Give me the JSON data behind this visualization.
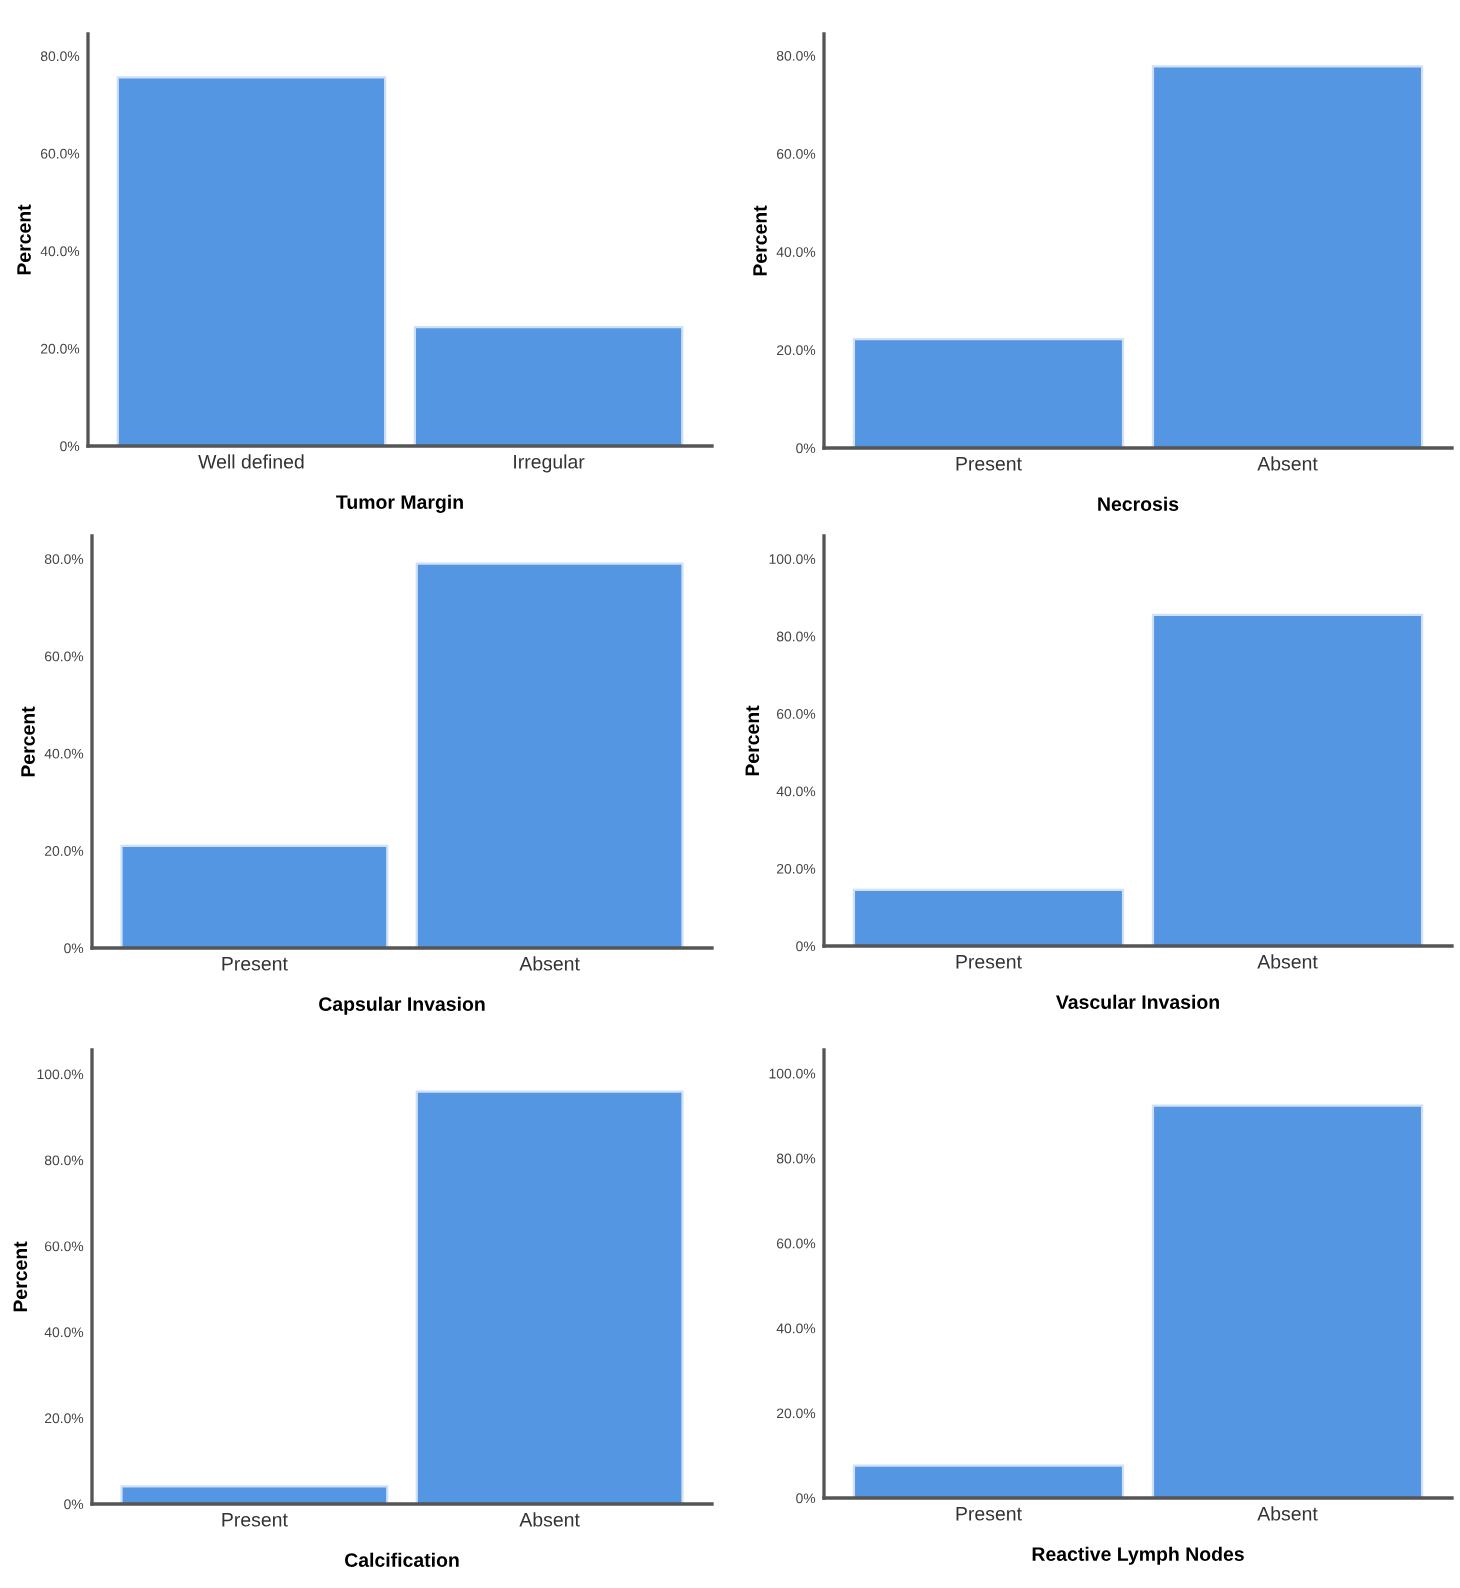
{
  "chart_data": [
    {
      "type": "bar",
      "categories": [
        "Well defined",
        "Irregular"
      ],
      "values": [
        75.6,
        24.4
      ],
      "color": "#5596e3",
      "xlabel": "Tumor Margin",
      "ylabel": "Percent",
      "ylim": [
        0,
        84.5
      ],
      "yticks": [
        {
          "value": 0,
          "label": "0%"
        },
        {
          "value": 20,
          "label": "20.0%"
        },
        {
          "value": 40,
          "label": "40.0%"
        },
        {
          "value": 60,
          "label": "60.0%"
        },
        {
          "value": 80,
          "label": "80.0%"
        }
      ],
      "grid": false
    },
    {
      "type": "bar",
      "categories": [
        "Present",
        "Absent"
      ],
      "values": [
        22.2,
        77.8
      ],
      "color": "#5596e3",
      "xlabel": "Necrosis",
      "ylabel": "Percent",
      "ylim": [
        0,
        84.4
      ],
      "yticks": [
        {
          "value": 0,
          "label": "0%"
        },
        {
          "value": 20,
          "label": "20.0%"
        },
        {
          "value": 40,
          "label": "40.0%"
        },
        {
          "value": 60,
          "label": "60.0%"
        },
        {
          "value": 80,
          "label": "80.0%"
        }
      ],
      "grid": false
    },
    {
      "type": "bar",
      "categories": [
        "Present",
        "Absent"
      ],
      "values": [
        21.0,
        79.0
      ],
      "color": "#5596e3",
      "xlabel": "Capsular Invasion",
      "ylabel": "Percent",
      "ylim": [
        0,
        84.7
      ],
      "yticks": [
        {
          "value": 0,
          "label": "0%"
        },
        {
          "value": 20,
          "label": "20.0%"
        },
        {
          "value": 40,
          "label": "40.0%"
        },
        {
          "value": 60,
          "label": "60.0%"
        },
        {
          "value": 80,
          "label": "80.0%"
        }
      ],
      "grid": false
    },
    {
      "type": "bar",
      "categories": [
        "Present",
        "Absent"
      ],
      "values": [
        14.5,
        85.5
      ],
      "color": "#5596e3",
      "xlabel": "Vascular Invasion",
      "ylabel": "Percent",
      "ylim": [
        0,
        105.9
      ],
      "yticks": [
        {
          "value": 0,
          "label": "0%"
        },
        {
          "value": 20,
          "label": "20.0%"
        },
        {
          "value": 40,
          "label": "40.0%"
        },
        {
          "value": 60,
          "label": "60.0%"
        },
        {
          "value": 80,
          "label": "80.0%"
        },
        {
          "value": 100,
          "label": "100.0%"
        }
      ],
      "grid": false
    },
    {
      "type": "bar",
      "categories": [
        "Present",
        "Absent"
      ],
      "values": [
        4.1,
        95.9
      ],
      "color": "#5596e3",
      "xlabel": "Calcification",
      "ylabel": "Percent",
      "ylim": [
        0,
        105.6
      ],
      "yticks": [
        {
          "value": 0,
          "label": "0%"
        },
        {
          "value": 20,
          "label": "20.0%"
        },
        {
          "value": 40,
          "label": "40.0%"
        },
        {
          "value": 60,
          "label": "60.0%"
        },
        {
          "value": 80,
          "label": "80.0%"
        },
        {
          "value": 100,
          "label": "100.0%"
        }
      ],
      "grid": false
    },
    {
      "type": "bar",
      "categories": [
        "Present",
        "Absent"
      ],
      "values": [
        7.6,
        92.4
      ],
      "color": "#5596e3",
      "xlabel": "Reactive Lymph Nodes",
      "ylim": [
        0,
        105.5
      ],
      "yticks": [
        {
          "value": 0,
          "label": "0%"
        },
        {
          "value": 20,
          "label": "20.0%"
        },
        {
          "value": 40,
          "label": "40.0%"
        },
        {
          "value": 60,
          "label": "60.0%"
        },
        {
          "value": 80,
          "label": "80.0%"
        },
        {
          "value": 100,
          "label": "100.0%"
        }
      ],
      "grid": false
    }
  ]
}
